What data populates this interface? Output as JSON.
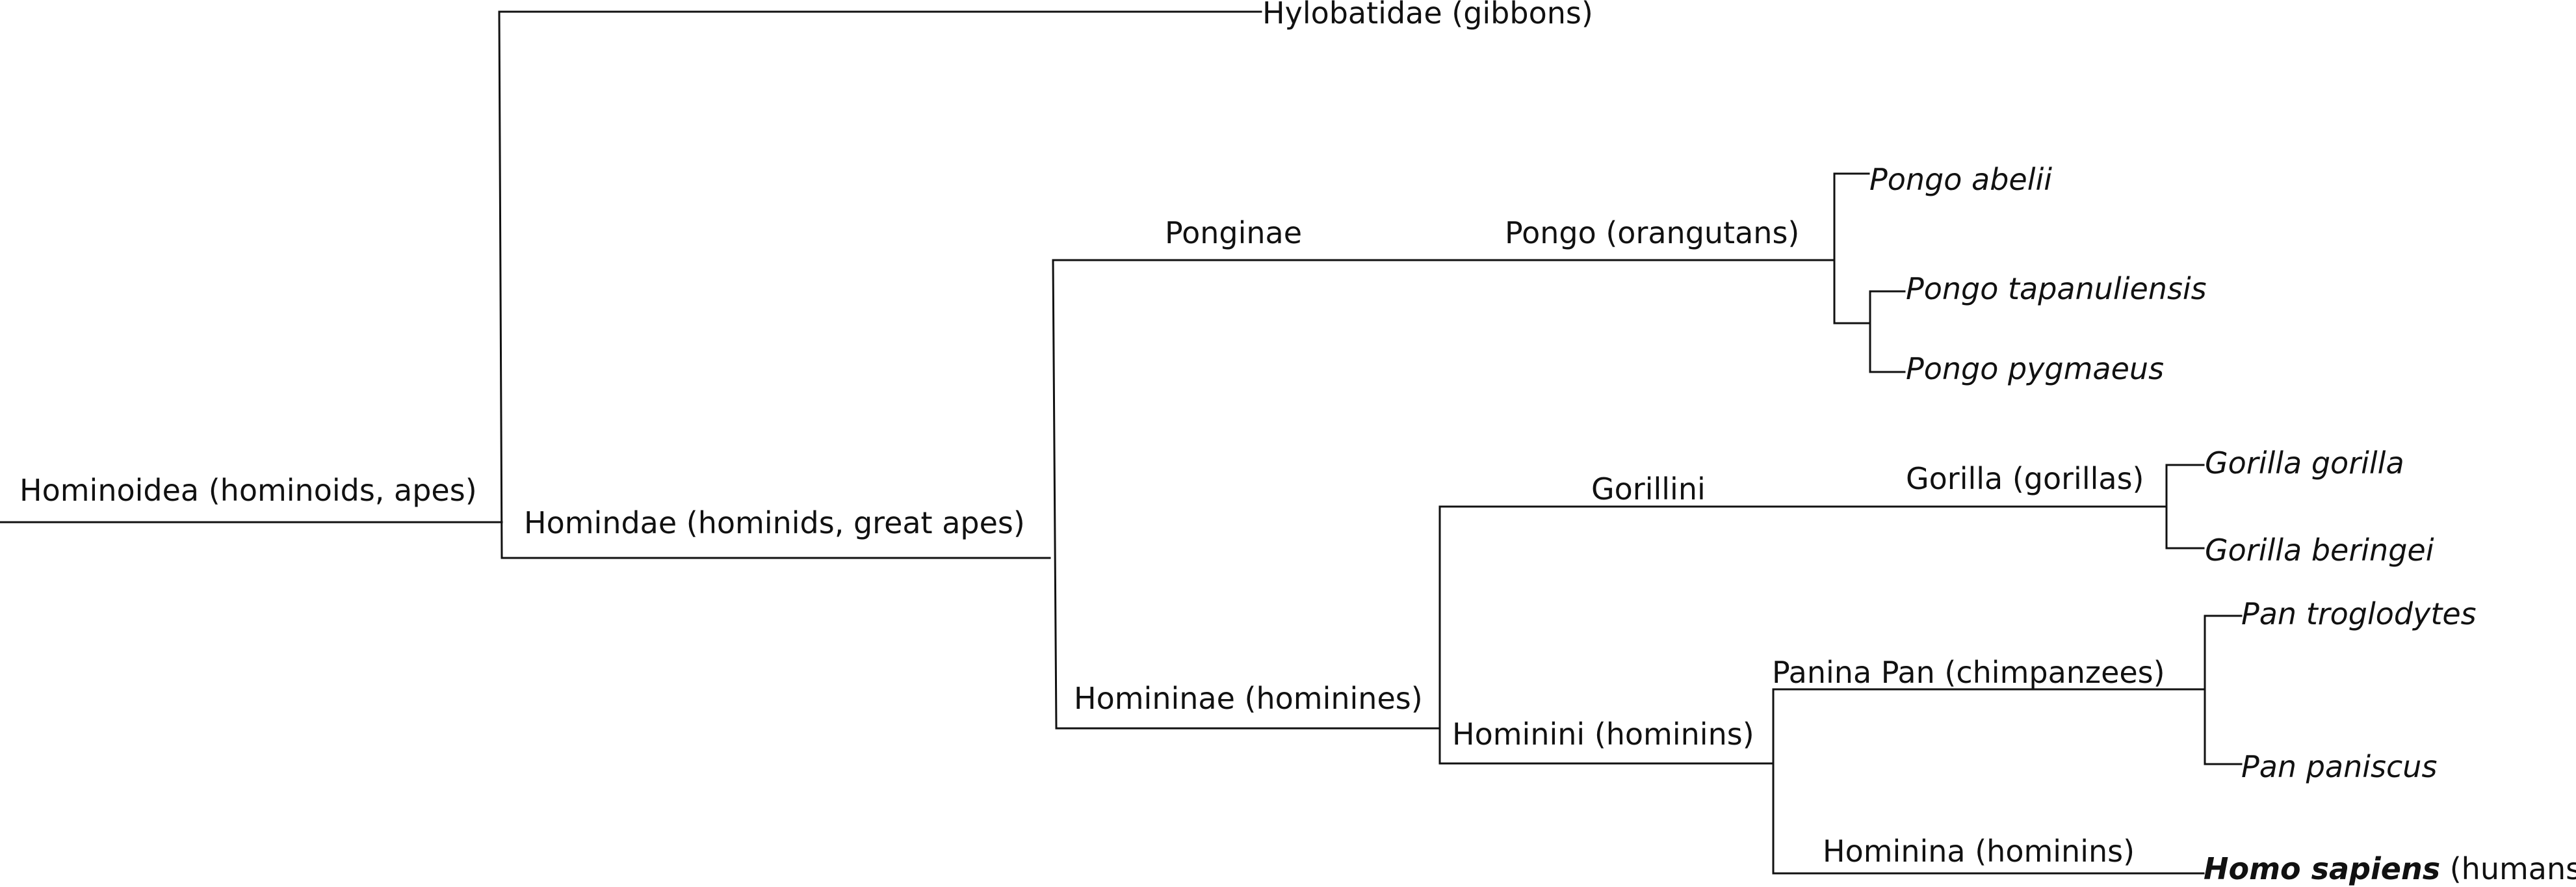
{
  "taxa": {
    "hominoidea": "Hominoidea (hominoids, apes)",
    "hylobatidae": "Hylobatidae (gibbons)",
    "hominidae": "Homindae (hominids, great apes)",
    "ponginae": "Ponginae",
    "pongo": "Pongo (orangutans)",
    "pongo_abelii": "Pongo abelii",
    "pongo_tapanuliensis": "Pongo tapanuliensis",
    "pongo_pygmaeus": "Pongo pygmaeus",
    "homininae": "Homininae (hominines)",
    "gorillini": "Gorillini",
    "gorilla": "Gorilla (gorillas)",
    "gorilla_gorilla": "Gorilla gorilla",
    "gorilla_beringei": "Gorilla beringei",
    "hominini": "Hominini (hominins)",
    "panina": "Panina Pan (chimpanzees)",
    "pan_troglodytes": "Pan troglodytes",
    "pan_paniscus": "Pan paniscus",
    "hominina": "Hominina (hominins)",
    "homo_sapiens_name": "Homo sapiens",
    "homo_sapiens_common": " (humans)"
  }
}
